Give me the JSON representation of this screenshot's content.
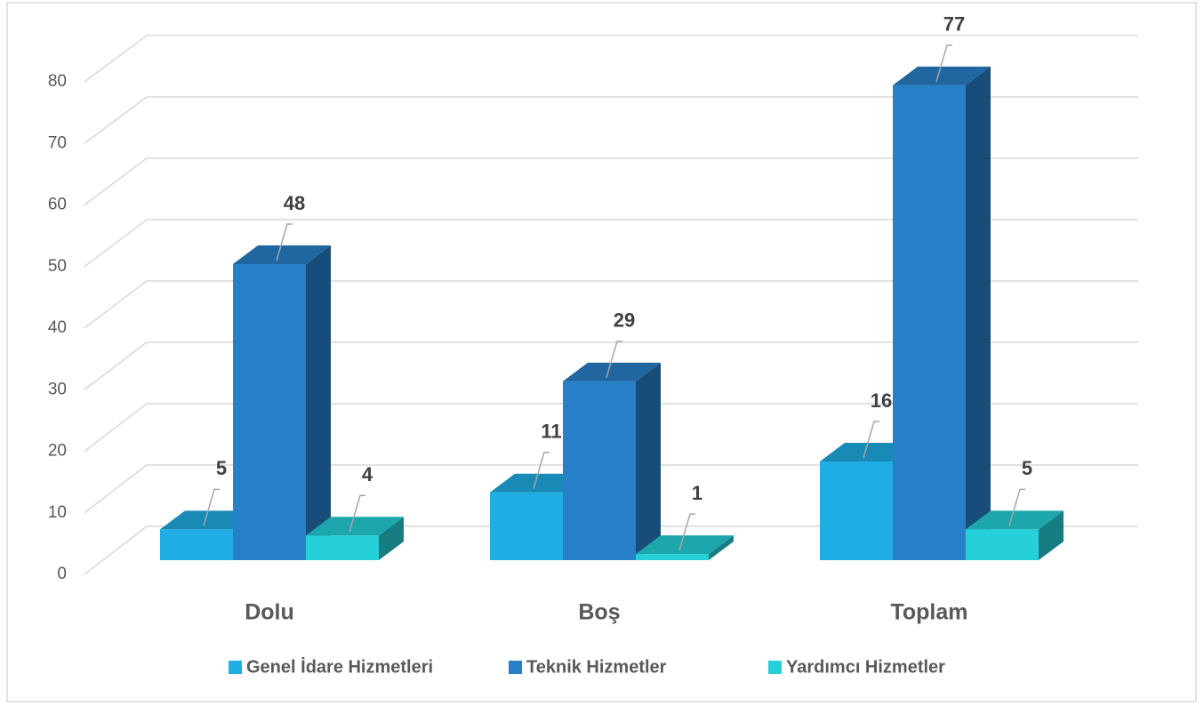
{
  "chart_data": {
    "type": "bar3d",
    "categories": [
      "Dolu",
      "Boş",
      "Toplam"
    ],
    "series": [
      {
        "name": "Genel İdare Hizmetleri",
        "color": "#1fade3",
        "values": [
          5,
          11,
          16
        ]
      },
      {
        "name": "Teknik Hizmetler",
        "color": "#2880c9",
        "values": [
          48,
          29,
          77
        ]
      },
      {
        "name": "Yardımcı Hizmetler",
        "color": "#26d0d8",
        "values": [
          4,
          1,
          5
        ]
      }
    ],
    "ylim": [
      0,
      80
    ],
    "yticks": [
      0,
      10,
      20,
      30,
      40,
      50,
      60,
      70,
      80
    ],
    "grid": true,
    "legend": "bottom"
  }
}
